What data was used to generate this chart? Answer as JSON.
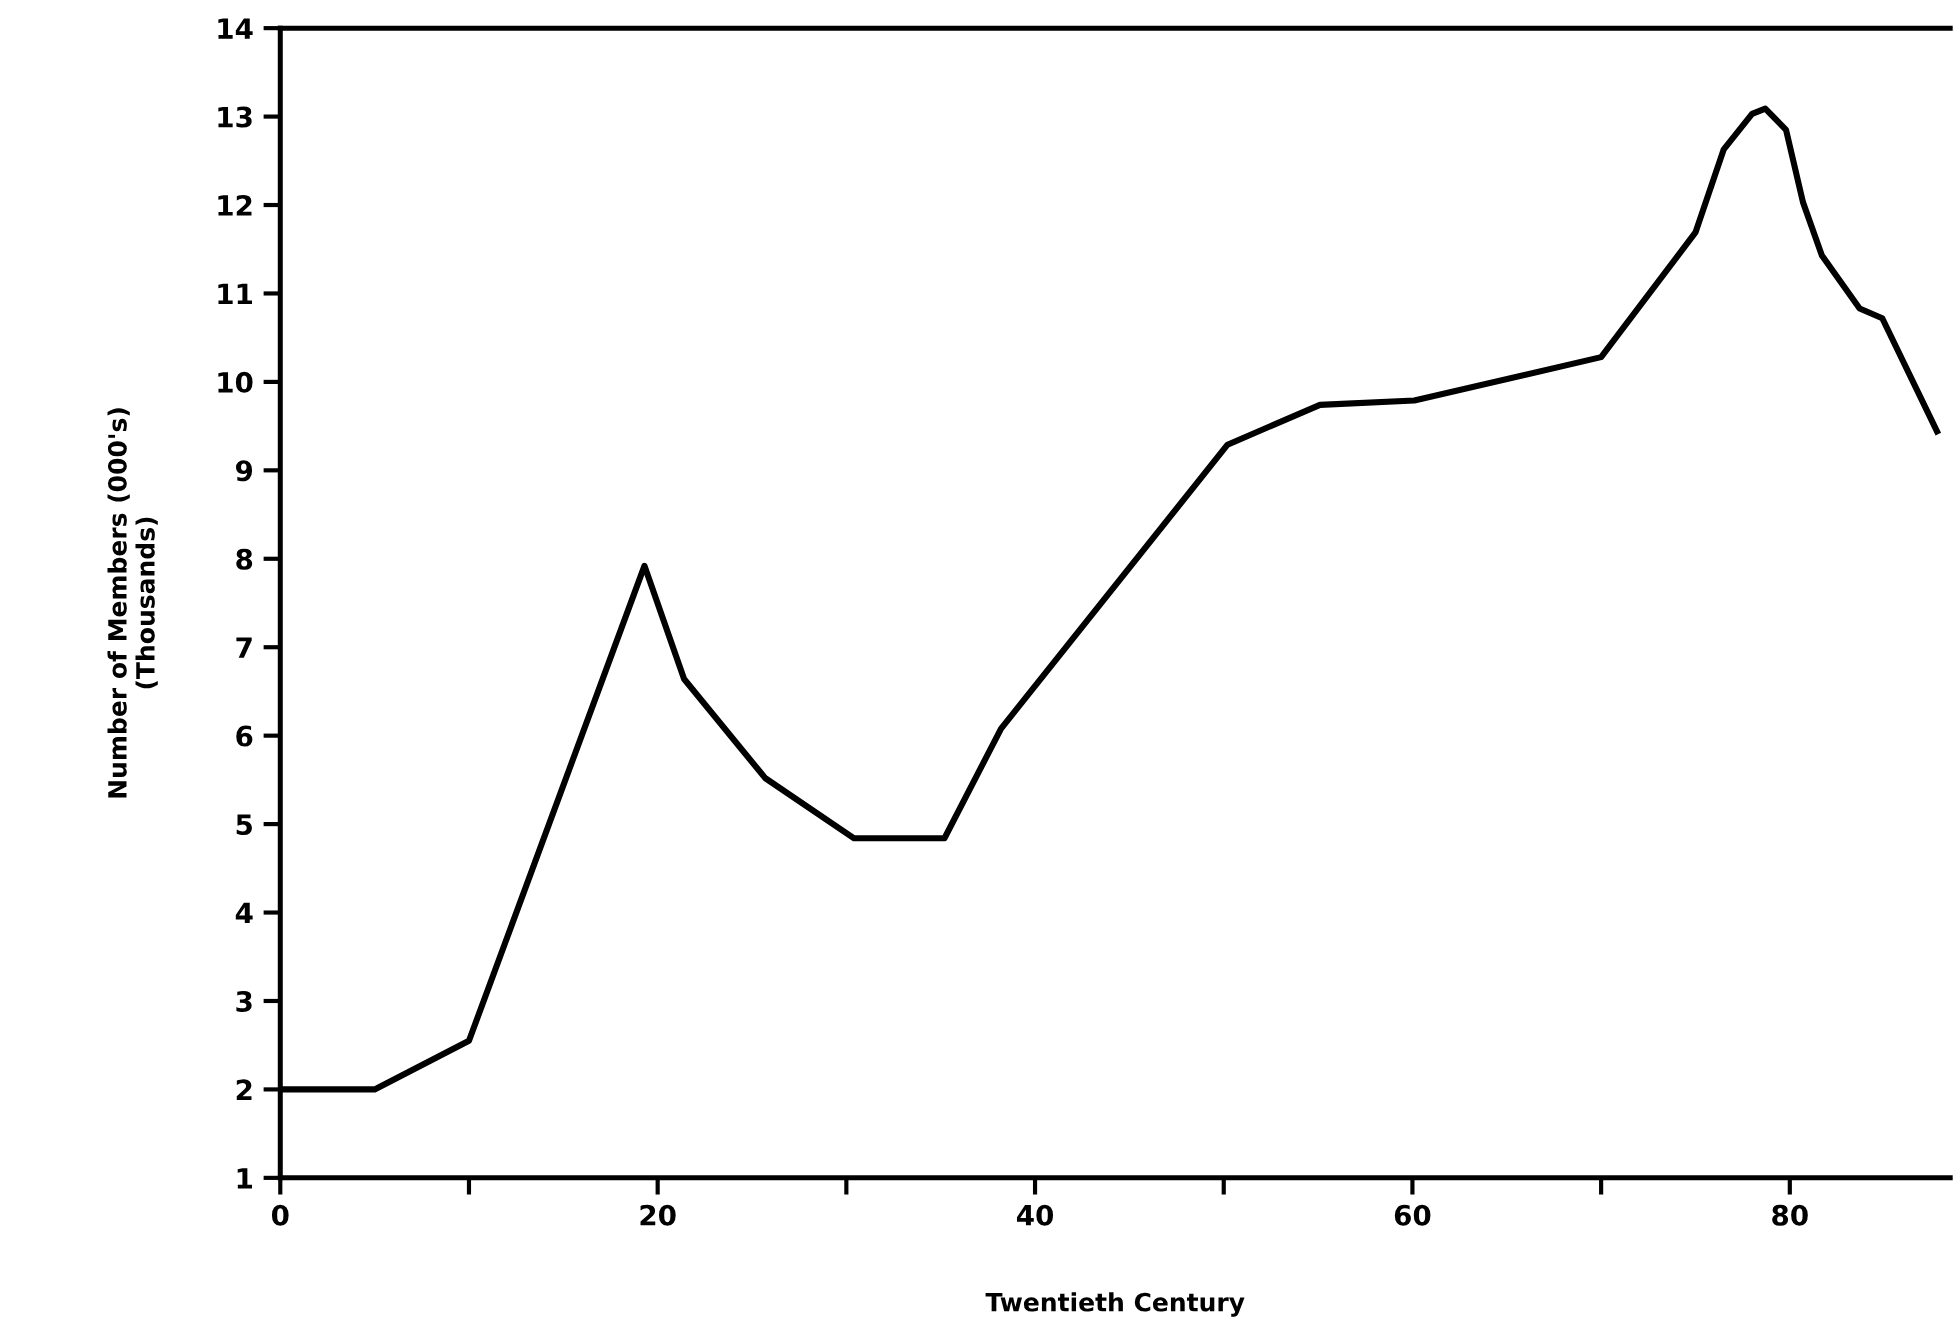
{
  "chart_data": {
    "type": "line",
    "xlabel": "Twentieth Century",
    "ylabel": "Number of Members (000's)\n(Thousands)",
    "x": [
      0,
      5,
      10,
      19.3,
      21.4,
      25.7,
      30.4,
      35.2,
      38.2,
      50.2,
      55.1,
      60.1,
      70,
      75,
      76.5,
      78,
      78.7,
      79.8,
      80.7,
      81.7,
      83.7,
      84.9,
      87.8
    ],
    "series": [
      {
        "color": "#000000",
        "values": [
          2,
          2,
          2.55,
          7.92,
          6.64,
          5.52,
          4.84,
          4.84,
          6.08,
          9.29,
          9.74,
          9.79,
          10.28,
          11.69,
          12.63,
          13.03,
          13.09,
          12.85,
          12.03,
          11.43,
          10.83,
          10.72,
          9.44
        ]
      }
    ],
    "xlim": [
      0,
      88.5
    ],
    "ylim": [
      1,
      14
    ],
    "xticks": [
      0,
      {
        "value": 10,
        "label": null
      },
      20,
      {
        "value": 30,
        "label": null
      },
      40,
      {
        "value": 50,
        "label": null
      },
      60,
      {
        "value": 70,
        "label": null
      },
      80
    ],
    "yticks": [
      1,
      2,
      3,
      4,
      5,
      6,
      7,
      8,
      9,
      10,
      11,
      12,
      13,
      14
    ],
    "grid": false,
    "legend": false,
    "marker": "none",
    "line_style": "solid"
  }
}
